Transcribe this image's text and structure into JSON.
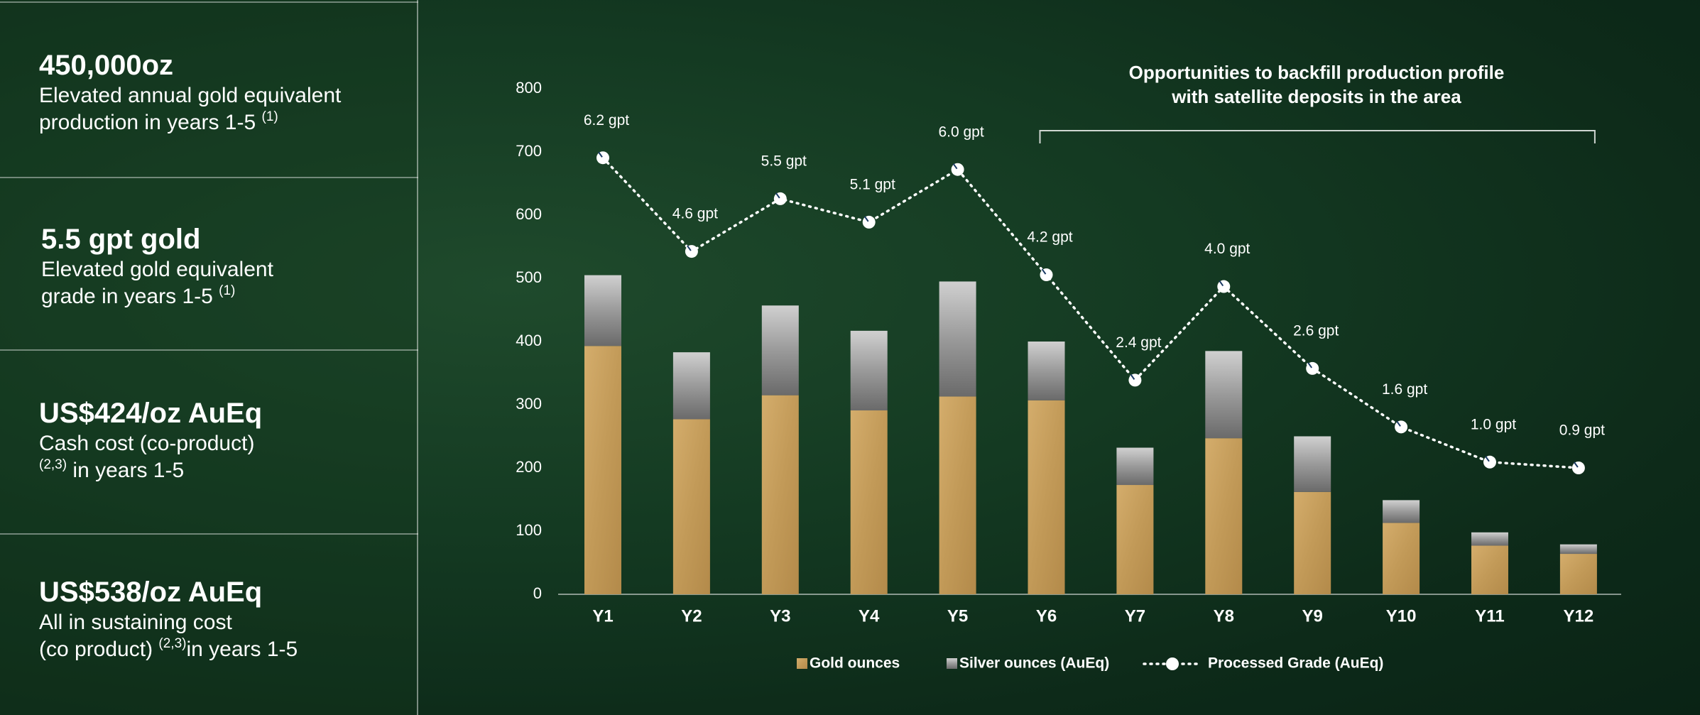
{
  "stats": [
    {
      "value": "450,000oz",
      "lines": [
        [
          {
            "text": "Elevated annual gold equivalent"
          }
        ],
        [
          {
            "text": "production in years 1-5 "
          },
          {
            "text": "(1)",
            "sup": true
          }
        ]
      ]
    },
    {
      "value": "5.5 gpt gold",
      "lines": [
        [
          {
            "text": "Elevated gold equivalent"
          }
        ],
        [
          {
            "text": "grade in years 1-5 "
          },
          {
            "text": "(1)",
            "sup": true
          }
        ]
      ]
    },
    {
      "value": "US$424/oz AuEq",
      "lines": [
        [
          {
            "text": "Cash cost (co-product)"
          }
        ],
        [
          {
            "text": "(2,3)",
            "sup": true
          },
          {
            "text": " in years 1-5"
          }
        ]
      ]
    },
    {
      "value": "US$538/oz AuEq",
      "lines": [
        [
          {
            "text": "All in sustaining cost"
          }
        ],
        [
          {
            "text": "(co product) "
          },
          {
            "text": "(2,3)",
            "sup": true
          },
          {
            "text": "in years 1-5"
          }
        ]
      ]
    }
  ],
  "chart_data": {
    "type": "bar",
    "stacked": true,
    "annotation": [
      "Opportunities to backfill production profile",
      "with satellite deposits in the area"
    ],
    "categories": [
      "Y1",
      "Y2",
      "Y3",
      "Y4",
      "Y5",
      "Y6",
      "Y7",
      "Y8",
      "Y9",
      "Y10",
      "Y11",
      "Y12"
    ],
    "series": [
      {
        "name": "Gold ounces",
        "color": "#c8a262",
        "values": [
          393,
          277,
          315,
          291,
          313,
          307,
          173,
          247,
          162,
          113,
          77,
          64
        ]
      },
      {
        "name": "Silver ounces (AuEq)",
        "color": "#a8a8a8",
        "values": [
          112,
          106,
          142,
          126,
          182,
          93,
          59,
          138,
          88,
          36,
          21,
          15
        ]
      },
      {
        "name": "Processed Grade (AuEq)",
        "type": "line",
        "axis": "y2",
        "color": "#ffffff",
        "values": [
          6.2,
          4.6,
          5.5,
          5.1,
          6.0,
          4.2,
          2.4,
          4.0,
          2.6,
          1.6,
          1.0,
          0.9
        ],
        "value_labels": [
          "6.2 gpt",
          "4.6 gpt",
          "5.5 gpt",
          "5.1 gpt",
          "6.0 gpt",
          "4.2 gpt",
          "2.4 gpt",
          "4.0 gpt",
          "2.6 gpt",
          "1.6 gpt",
          "1.0 gpt",
          "0.9 gpt"
        ]
      }
    ],
    "ylim": [
      0,
      800
    ],
    "yticks": [
      0,
      100,
      200,
      300,
      400,
      500,
      600,
      700,
      800
    ],
    "y2lim": [
      -1.26,
      7.38
    ],
    "grid": false
  }
}
